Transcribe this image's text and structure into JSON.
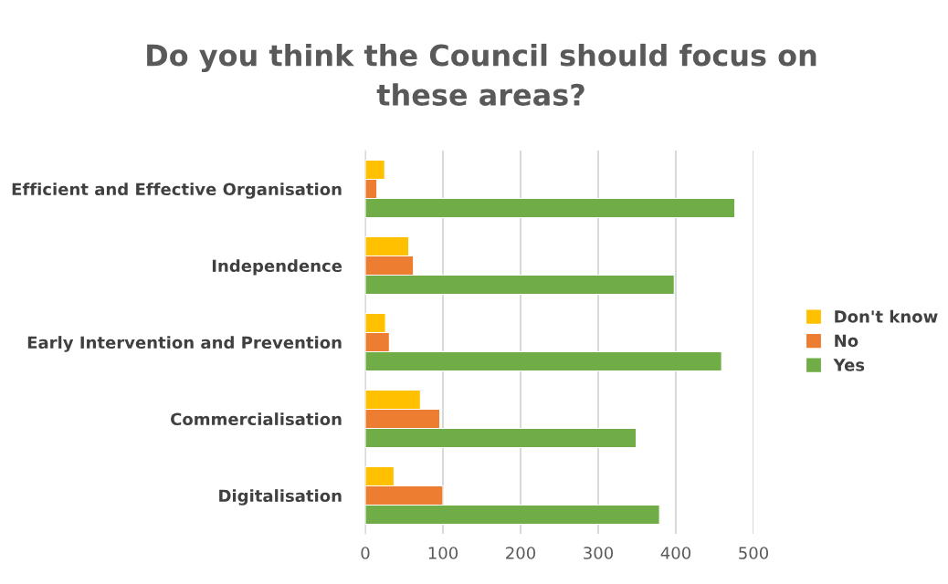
{
  "chart_data": {
    "type": "bar",
    "orientation": "horizontal",
    "title": "Do you think the Council should focus on\nthese areas?",
    "categories": [
      "Efficient and Effective Organisation",
      "Independence",
      "Early Intervention and Prevention",
      "Commercialisation",
      "Digitalisation"
    ],
    "series": [
      {
        "name": "Don't know",
        "color": "#ffc000",
        "values": [
          25,
          56,
          26,
          71,
          37
        ]
      },
      {
        "name": "No",
        "color": "#ed7d31",
        "values": [
          15,
          62,
          31,
          96,
          100
        ]
      },
      {
        "name": "Yes",
        "color": "#70ad47",
        "values": [
          476,
          398,
          459,
          349,
          379
        ]
      }
    ],
    "xlim": [
      0,
      500
    ],
    "xticks": [
      0,
      100,
      200,
      300,
      400,
      500
    ],
    "grid": "x",
    "legend": "right"
  }
}
